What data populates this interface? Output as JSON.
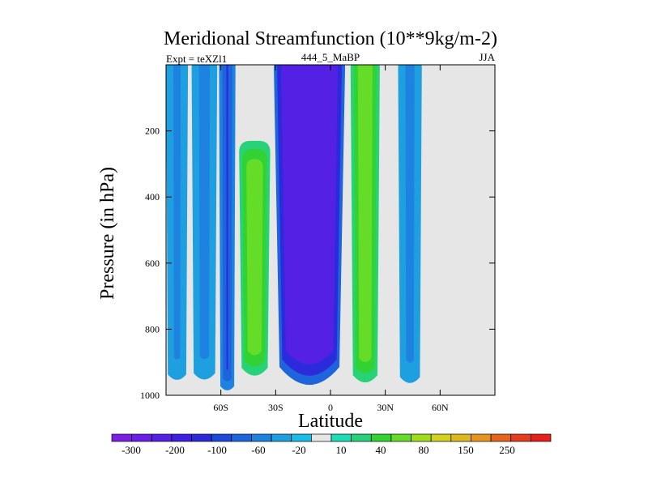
{
  "chart_data": {
    "type": "heatmap",
    "title": "Meridional Streamfunction (10**9kg/m-2)",
    "subtitle_left": "Expt = teXZl1",
    "subtitle_center": "444_5_MaBP",
    "subtitle_right": "JJA",
    "xlabel": "Latitude",
    "ylabel": "Pressure (in hPa)",
    "xlim": [
      -90,
      90
    ],
    "ylim": [
      1000,
      0
    ],
    "x_ticks": [
      {
        "value": -60,
        "label": "60S"
      },
      {
        "value": -30,
        "label": "30S"
      },
      {
        "value": 0,
        "label": "0"
      },
      {
        "value": 30,
        "label": "30N"
      },
      {
        "value": 60,
        "label": "60N"
      }
    ],
    "y_ticks": [
      {
        "value": 200,
        "label": "200"
      },
      {
        "value": 400,
        "label": "400"
      },
      {
        "value": 600,
        "label": "600"
      },
      {
        "value": 800,
        "label": "800"
      },
      {
        "value": 1000,
        "label": "1000"
      }
    ],
    "colorbar": {
      "colors": [
        "#7d1ee5",
        "#6a1ee6",
        "#5320e4",
        "#3e20e0",
        "#2b2bdc",
        "#1f48dc",
        "#1e64dc",
        "#1e82e0",
        "#1ea0e0",
        "#19bde8",
        "#e6e6e6",
        "#1edcb4",
        "#28d278",
        "#32d232",
        "#64dc28",
        "#a0dc1e",
        "#d2d21e",
        "#dcb91e",
        "#e6961e",
        "#e6641e",
        "#e63c1e",
        "#e61e1e"
      ],
      "labels": [
        "-300",
        "-200",
        "-100",
        "-60",
        "-20",
        "10",
        "40",
        "80",
        "150",
        "250"
      ]
    },
    "bands": [
      {
        "name": "polar-south-cell",
        "x0": -90,
        "x1": -78,
        "ptop": 0,
        "pbot": 960,
        "value": -20,
        "core_value": -40
      },
      {
        "name": "south-midlat-cell",
        "x0": -76,
        "x1": -62,
        "ptop": 0,
        "pbot": 960,
        "value": -20,
        "core_value": -40
      },
      {
        "name": "south-jet-cell",
        "x0": -61,
        "x1": -52,
        "ptop": 0,
        "pbot": 990,
        "value": -40,
        "core_value": -100
      },
      {
        "name": "south-ferrel-cell",
        "x0": -50,
        "x1": -33,
        "ptop": 230,
        "pbot": 950,
        "value": 40,
        "core_value": 80
      },
      {
        "name": "south-hadley-cell",
        "x0": -31,
        "x1": 8,
        "ptop": 0,
        "pbot": 990,
        "value": -60,
        "core_value": -200
      },
      {
        "name": "north-hadley-cell",
        "x0": 11,
        "x1": 27,
        "ptop": 0,
        "pbot": 970,
        "value": 40,
        "core_value": 80
      },
      {
        "name": "north-midlat-cell",
        "x0": 37,
        "x1": 50,
        "ptop": 0,
        "pbot": 970,
        "value": -20,
        "core_value": -40
      }
    ]
  }
}
